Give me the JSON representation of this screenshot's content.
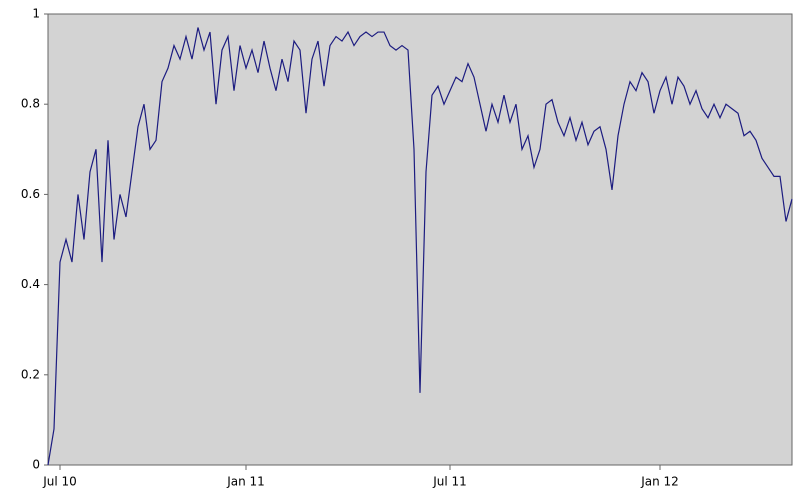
{
  "chart_data": {
    "type": "line",
    "color": "#1c1c80",
    "categories": [
      null,
      null,
      "Jul 10",
      null,
      null,
      null,
      null,
      null,
      null,
      null,
      null,
      null,
      null,
      null,
      null,
      null,
      null,
      null,
      null,
      null,
      null,
      null,
      null,
      null,
      null,
      null,
      null,
      null,
      null,
      null,
      null,
      null,
      null,
      "Jan 11",
      null,
      null,
      null,
      null,
      null,
      null,
      null,
      null,
      null,
      null,
      null,
      null,
      null,
      null,
      null,
      null,
      null,
      null,
      null,
      null,
      null,
      null,
      null,
      null,
      null,
      null,
      null,
      null,
      null,
      null,
      null,
      null,
      null,
      "Jul 11",
      null,
      null,
      null,
      null,
      null,
      null,
      null,
      null,
      null,
      null,
      null,
      null,
      null,
      null,
      null,
      null,
      null,
      null,
      null,
      null,
      null,
      null,
      null,
      null,
      null,
      null,
      null,
      null,
      null,
      null,
      null,
      null,
      null,
      null,
      "Jan 12",
      null,
      null,
      null,
      null,
      null,
      null,
      null,
      null,
      null,
      null,
      null,
      null,
      null,
      null,
      null,
      null,
      null,
      null,
      null,
      null,
      null,
      null
    ],
    "values": [
      0,
      0.08,
      0.45,
      0.5,
      0.45,
      0.6,
      0.5,
      0.65,
      0.7,
      0.45,
      0.72,
      0.5,
      0.6,
      0.55,
      0.65,
      0.75,
      0.8,
      0.7,
      0.72,
      0.85,
      0.88,
      0.93,
      0.9,
      0.95,
      0.9,
      0.97,
      0.92,
      0.96,
      0.8,
      0.92,
      0.95,
      0.83,
      0.93,
      0.88,
      0.92,
      0.87,
      0.94,
      0.88,
      0.83,
      0.9,
      0.85,
      0.94,
      0.92,
      0.78,
      0.9,
      0.94,
      0.84,
      0.93,
      0.95,
      0.94,
      0.96,
      0.93,
      0.95,
      0.96,
      0.95,
      0.96,
      0.96,
      0.93,
      0.92,
      0.93,
      0.92,
      0.7,
      0.16,
      0.65,
      0.82,
      0.84,
      0.8,
      0.83,
      0.86,
      0.85,
      0.89,
      0.86,
      0.8,
      0.74,
      0.8,
      0.76,
      0.82,
      0.76,
      0.8,
      0.7,
      0.73,
      0.66,
      0.7,
      0.8,
      0.81,
      0.76,
      0.73,
      0.77,
      0.72,
      0.76,
      0.71,
      0.74,
      0.75,
      0.7,
      0.61,
      0.73,
      0.8,
      0.85,
      0.83,
      0.87,
      0.85,
      0.78,
      0.83,
      0.86,
      0.8,
      0.86,
      0.84,
      0.8,
      0.83,
      0.79,
      0.77,
      0.8,
      0.77,
      0.8,
      0.79,
      0.78,
      0.73,
      0.74,
      0.72,
      0.68,
      0.66,
      0.64,
      0.64,
      0.54,
      0.59
    ],
    "ylim": [
      0,
      1
    ],
    "yticks": [
      0,
      0.2,
      0.4,
      0.6,
      0.8,
      1
    ],
    "grid": false
  }
}
